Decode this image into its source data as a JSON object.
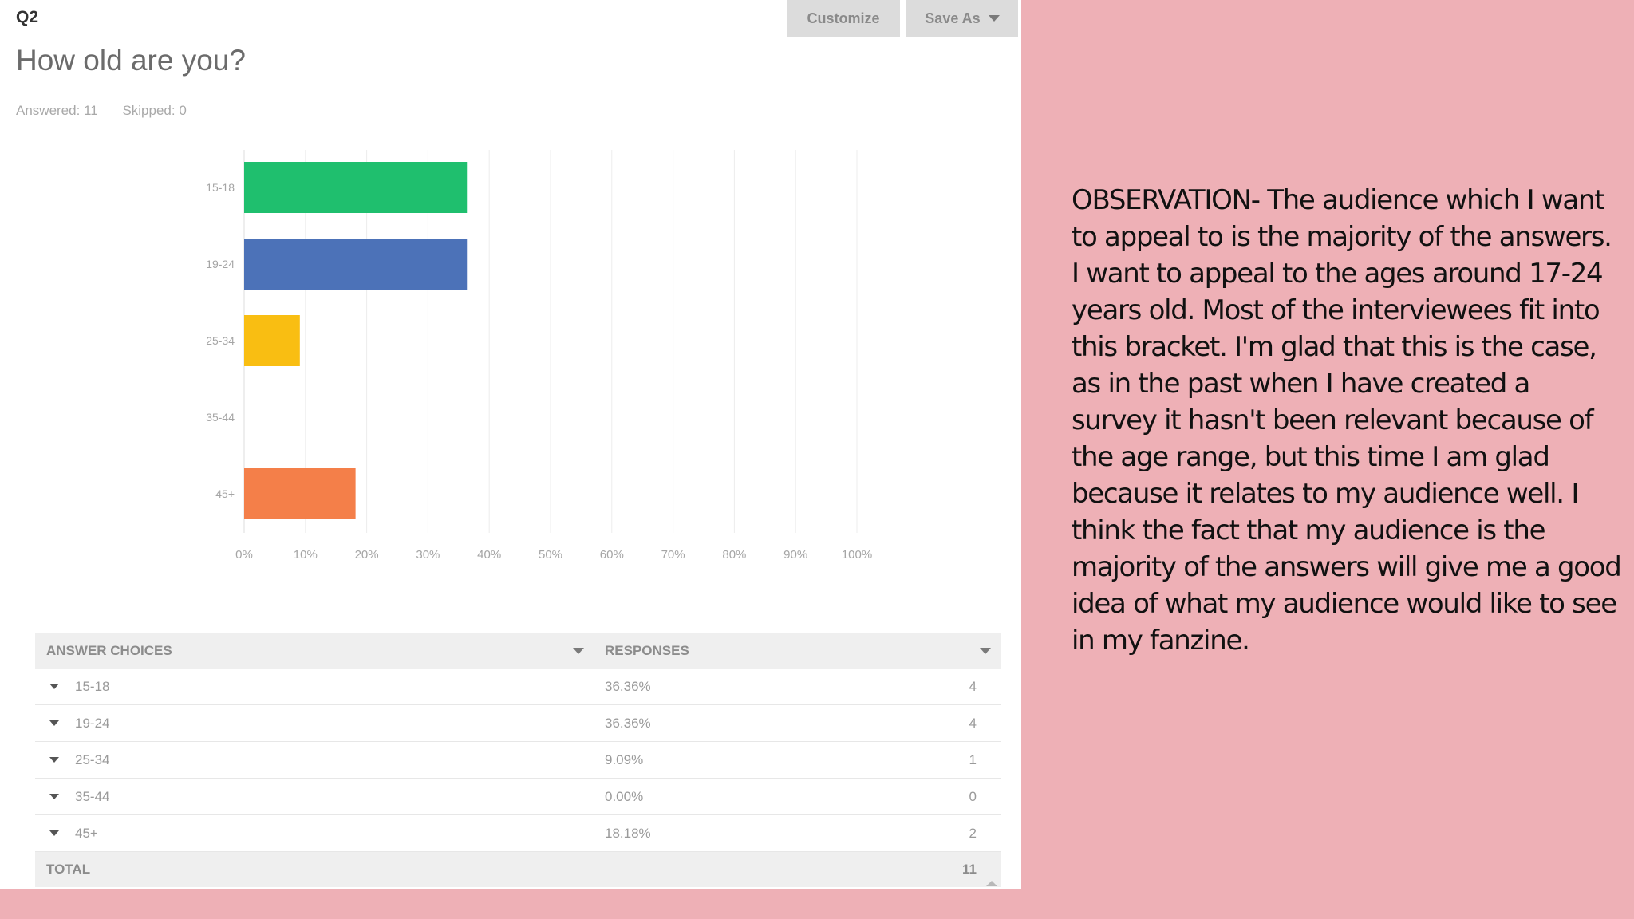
{
  "survey": {
    "question_number": "Q2",
    "question_title": "How old are you?",
    "answered": "Answered: 11",
    "skipped": "Skipped: 0",
    "customize_label": "Customize",
    "save_as_label": "Save As"
  },
  "chart_data": {
    "type": "bar",
    "orientation": "horizontal",
    "categories": [
      "15-18",
      "19-24",
      "25-34",
      "35-44",
      "45+"
    ],
    "values": [
      36.36,
      36.36,
      9.09,
      0,
      18.18
    ],
    "colors": [
      "#1fbf6e",
      "#4c72b8",
      "#f9be12",
      "#8a66b2",
      "#f47f49"
    ],
    "x_ticks": [
      "0%",
      "10%",
      "20%",
      "30%",
      "40%",
      "50%",
      "60%",
      "70%",
      "80%",
      "90%",
      "100%"
    ],
    "xlim": [
      0,
      100
    ],
    "grid": true
  },
  "table": {
    "headers": [
      "ANSWER CHOICES",
      "RESPONSES"
    ],
    "rows": [
      {
        "choice": "15-18",
        "percent": "36.36%",
        "count": "4"
      },
      {
        "choice": "19-24",
        "percent": "36.36%",
        "count": "4"
      },
      {
        "choice": "25-34",
        "percent": "9.09%",
        "count": "1"
      },
      {
        "choice": "35-44",
        "percent": "0.00%",
        "count": "0"
      },
      {
        "choice": "45+",
        "percent": "18.18%",
        "count": "2"
      }
    ],
    "total_label": "TOTAL",
    "total_value": "11"
  },
  "observation": "OBSERVATION- The audience which I want to appeal to is the majority of the answers. I want to appeal to the ages around 17-24 years old. Most of the interviewees fit into this bracket. I'm glad that this is the case, as in the past when I have created a survey it hasn't been relevant because of the age range, but this time I am glad because it relates to my audience well. I think the fact that my audience is the majority of the answers will give me a good idea of what my audience would like to see in my fanzine."
}
